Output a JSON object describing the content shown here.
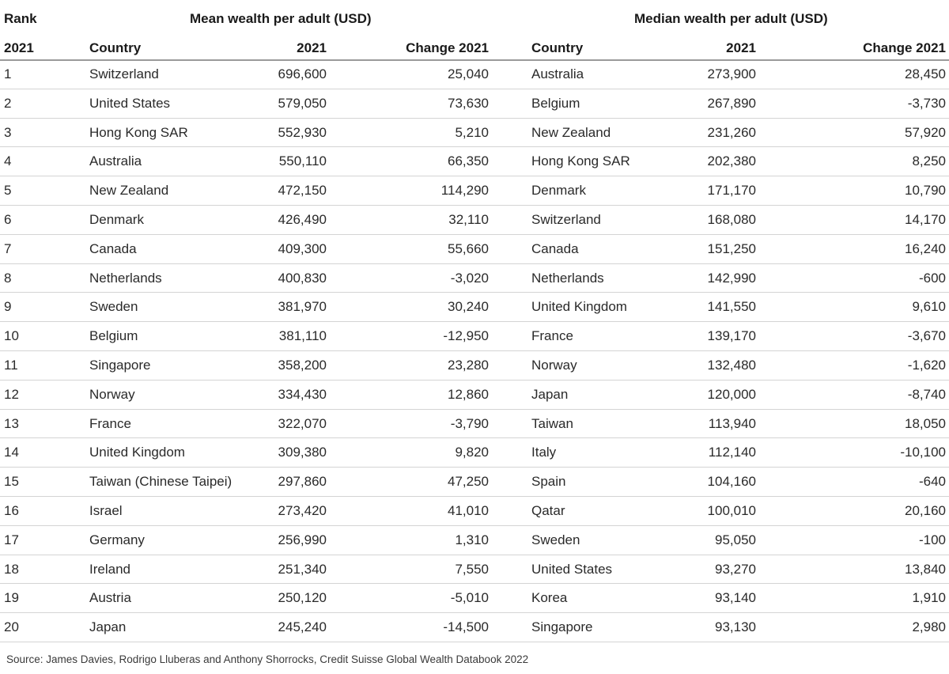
{
  "headers": {
    "rank_top": "Rank",
    "mean_group": "Mean wealth per adult (USD)",
    "median_group": "Median wealth per adult (USD)",
    "rank_year": "2021",
    "country": "Country",
    "mean_year": "2021",
    "mean_change": "Change 2021",
    "country2": "Country",
    "median_year": "2021",
    "median_change": "Change 2021"
  },
  "rows": [
    {
      "rank": "1",
      "mean_country": "Switzerland",
      "mean": "696,600",
      "mean_change": "25,040",
      "median_country": "Australia",
      "median": "273,900",
      "median_change": "28,450"
    },
    {
      "rank": "2",
      "mean_country": "United States",
      "mean": "579,050",
      "mean_change": "73,630",
      "median_country": "Belgium",
      "median": "267,890",
      "median_change": "-3,730"
    },
    {
      "rank": "3",
      "mean_country": "Hong Kong SAR",
      "mean": "552,930",
      "mean_change": "5,210",
      "median_country": "New Zealand",
      "median": "231,260",
      "median_change": "57,920"
    },
    {
      "rank": "4",
      "mean_country": "Australia",
      "mean": "550,110",
      "mean_change": "66,350",
      "median_country": "Hong Kong SAR",
      "median": "202,380",
      "median_change": "8,250"
    },
    {
      "rank": "5",
      "mean_country": "New Zealand",
      "mean": "472,150",
      "mean_change": "114,290",
      "median_country": "Denmark",
      "median": "171,170",
      "median_change": "10,790"
    },
    {
      "rank": "6",
      "mean_country": "Denmark",
      "mean": "426,490",
      "mean_change": "32,110",
      "median_country": "Switzerland",
      "median": "168,080",
      "median_change": "14,170"
    },
    {
      "rank": "7",
      "mean_country": "Canada",
      "mean": "409,300",
      "mean_change": "55,660",
      "median_country": "Canada",
      "median": "151,250",
      "median_change": "16,240"
    },
    {
      "rank": "8",
      "mean_country": "Netherlands",
      "mean": "400,830",
      "mean_change": "-3,020",
      "median_country": "Netherlands",
      "median": "142,990",
      "median_change": "-600"
    },
    {
      "rank": "9",
      "mean_country": "Sweden",
      "mean": "381,970",
      "mean_change": "30,240",
      "median_country": "United Kingdom",
      "median": "141,550",
      "median_change": "9,610"
    },
    {
      "rank": "10",
      "mean_country": "Belgium",
      "mean": "381,110",
      "mean_change": "-12,950",
      "median_country": "France",
      "median": "139,170",
      "median_change": "-3,670"
    },
    {
      "rank": "11",
      "mean_country": "Singapore",
      "mean": "358,200",
      "mean_change": "23,280",
      "median_country": "Norway",
      "median": "132,480",
      "median_change": "-1,620"
    },
    {
      "rank": "12",
      "mean_country": "Norway",
      "mean": "334,430",
      "mean_change": "12,860",
      "median_country": "Japan",
      "median": "120,000",
      "median_change": "-8,740"
    },
    {
      "rank": "13",
      "mean_country": "France",
      "mean": "322,070",
      "mean_change": "-3,790",
      "median_country": "Taiwan",
      "median": "113,940",
      "median_change": "18,050"
    },
    {
      "rank": "14",
      "mean_country": "United Kingdom",
      "mean": "309,380",
      "mean_change": "9,820",
      "median_country": "Italy",
      "median": "112,140",
      "median_change": "-10,100"
    },
    {
      "rank": "15",
      "mean_country": "Taiwan (Chinese Taipei)",
      "mean": "297,860",
      "mean_change": "47,250",
      "median_country": "Spain",
      "median": "104,160",
      "median_change": "-640"
    },
    {
      "rank": "16",
      "mean_country": "Israel",
      "mean": "273,420",
      "mean_change": "41,010",
      "median_country": "Qatar",
      "median": "100,010",
      "median_change": "20,160"
    },
    {
      "rank": "17",
      "mean_country": "Germany",
      "mean": "256,990",
      "mean_change": "1,310",
      "median_country": "Sweden",
      "median": "95,050",
      "median_change": "-100"
    },
    {
      "rank": "18",
      "mean_country": "Ireland",
      "mean": "251,340",
      "mean_change": "7,550",
      "median_country": "United States",
      "median": "93,270",
      "median_change": "13,840"
    },
    {
      "rank": "19",
      "mean_country": "Austria",
      "mean": "250,120",
      "mean_change": "-5,010",
      "median_country": "Korea",
      "median": "93,140",
      "median_change": "1,910"
    },
    {
      "rank": "20",
      "mean_country": "Japan",
      "mean": "245,240",
      "mean_change": "-14,500",
      "median_country": "Singapore",
      "median": "93,130",
      "median_change": "2,980"
    }
  ],
  "source": "Source: James Davies, Rodrigo Lluberas and Anthony Shorrocks, Credit Suisse Global Wealth Databook 2022"
}
